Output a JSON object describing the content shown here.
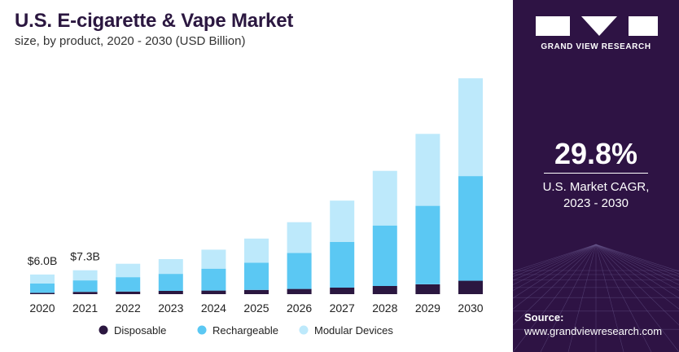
{
  "chart_data": {
    "type": "bar",
    "stacked": true,
    "title": "U.S. E-cigarette & Vape Market",
    "subtitle": "size, by product, 2020 - 2030 (USD Billion)",
    "categories": [
      "2020",
      "2021",
      "2022",
      "2023",
      "2024",
      "2025",
      "2026",
      "2027",
      "2028",
      "2029",
      "2030"
    ],
    "series": [
      {
        "name": "Disposable",
        "color": "#2b1740",
        "values": [
          0.4,
          0.7,
          0.8,
          1.0,
          1.1,
          1.3,
          1.6,
          2.0,
          2.5,
          3.0,
          4.1
        ]
      },
      {
        "name": "Rechargeable",
        "color": "#5bc8f3",
        "values": [
          2.9,
          3.5,
          4.4,
          5.2,
          6.7,
          8.3,
          11.0,
          14.0,
          18.5,
          24.0,
          32.0
        ]
      },
      {
        "name": "Modular Devices",
        "color": "#bde9fb",
        "values": [
          2.7,
          3.1,
          4.1,
          4.5,
          5.8,
          7.4,
          9.4,
          12.6,
          16.7,
          22.0,
          29.9
        ]
      }
    ],
    "data_labels": [
      {
        "category": "2020",
        "text": "$6.0B"
      },
      {
        "category": "2021",
        "text": "$7.3B"
      }
    ],
    "ylim": [
      0,
      70
    ],
    "legend_position": "bottom",
    "xlabel": "",
    "ylabel": ""
  },
  "brand": {
    "name": "GRAND VIEW RESEARCH",
    "background_color": "#2e1344"
  },
  "cagr": {
    "value": "29.8%",
    "label": "U.S. Market CAGR,",
    "period": "2023 - 2030"
  },
  "source": {
    "label": "Source:",
    "url": "www.grandviewresearch.com"
  }
}
